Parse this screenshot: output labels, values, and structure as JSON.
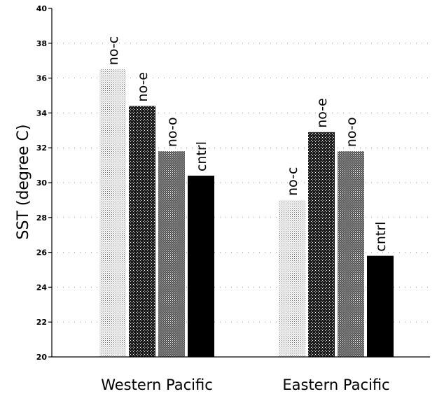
{
  "chart_data": {
    "type": "bar",
    "ylabel": "SST (degree C)",
    "xlabel": "",
    "title": "",
    "ylim": [
      20,
      40
    ],
    "yticks": [
      "20",
      "22",
      "24",
      "26",
      "28",
      "30",
      "32",
      "34",
      "36",
      "38",
      "40"
    ],
    "grid": "dotted horizontal",
    "legend": "none",
    "categories": [
      "Western Pacific",
      "Eastern Pacific"
    ],
    "series": [
      {
        "name": "no-c",
        "fill": "light-stipple",
        "values": [
          36.5,
          29.0
        ]
      },
      {
        "name": "no-e",
        "fill": "dark-crosshatch",
        "values": [
          34.4,
          32.9
        ]
      },
      {
        "name": "no-o",
        "fill": "medium-crosshatch",
        "values": [
          31.8,
          31.8
        ]
      },
      {
        "name": "cntrl",
        "fill": "solid-black",
        "values": [
          30.4,
          25.8
        ]
      }
    ]
  },
  "colors": {
    "axis": "#000000",
    "grid": "#9a9a9a",
    "stipple_light": "#c8c8c8",
    "crosshatch_dark": "#2a2a2a",
    "crosshatch_medium": "#555555",
    "solid": "#000000"
  }
}
